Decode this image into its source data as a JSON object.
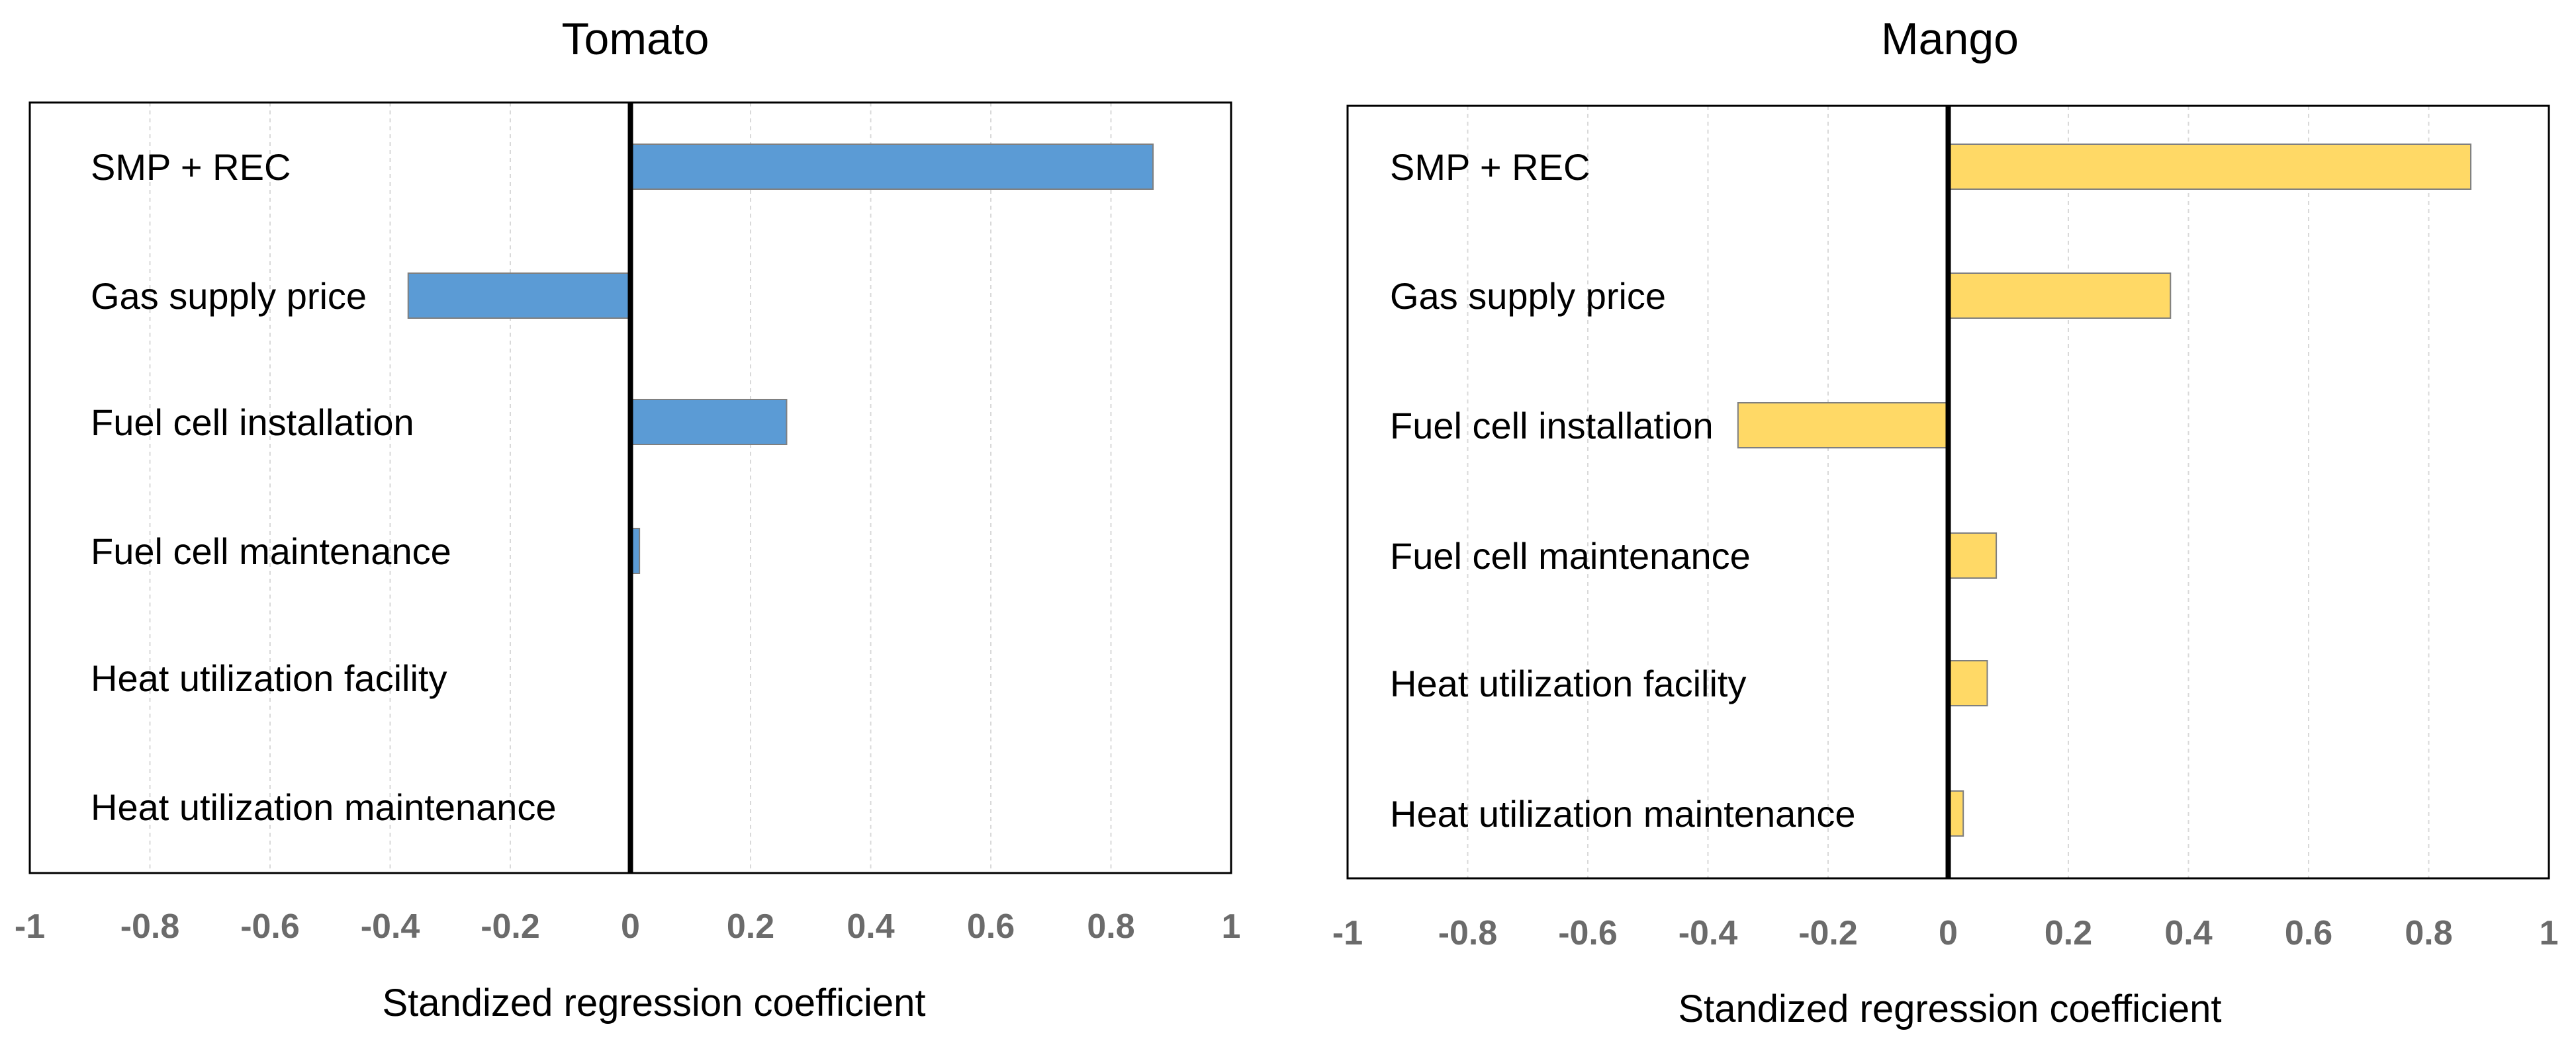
{
  "chart_data": [
    {
      "type": "bar",
      "orientation": "horizontal",
      "title": "Tomato",
      "categories": [
        "SMP + REC",
        "Gas supply price",
        "Fuel cell installation",
        "Fuel cell maintenance",
        "Heat utilization facility",
        "Heat utilization maintenance"
      ],
      "values": [
        0.87,
        -0.37,
        0.26,
        0.015,
        0,
        0
      ],
      "xlabel": "Standized regression coefficient",
      "ylabel": "",
      "xlim": [
        -1,
        1
      ],
      "x_ticks": [
        "-1",
        "-0.8",
        "-0.6",
        "-0.4",
        "-0.2",
        "0",
        "0.2",
        "0.4",
        "0.6",
        "0.8",
        "1"
      ],
      "x_tick_values": [
        -1,
        -0.8,
        -0.6,
        -0.4,
        -0.2,
        0,
        0.2,
        0.4,
        0.6,
        0.8,
        1
      ],
      "bar_color": "#5b9bd5",
      "grid": true
    },
    {
      "type": "bar",
      "orientation": "horizontal",
      "title": "Mango",
      "categories": [
        "SMP + REC",
        "Gas supply price",
        "Fuel cell installation",
        "Fuel cell maintenance",
        "Heat utilization facility",
        "Heat utilization maintenance"
      ],
      "values": [
        0.87,
        0.37,
        -0.35,
        0.08,
        0.065,
        0.025
      ],
      "xlabel": "Standized regression coefficient",
      "ylabel": "",
      "xlim": [
        -1,
        1
      ],
      "x_ticks": [
        "-1",
        "-0.8",
        "-0.6",
        "-0.4",
        "-0.2",
        "0",
        "0.2",
        "0.4",
        "0.6",
        "0.8",
        "1"
      ],
      "x_tick_values": [
        -1,
        -0.8,
        -0.6,
        -0.4,
        -0.2,
        0,
        0.2,
        0.4,
        0.6,
        0.8,
        1
      ],
      "bar_color": "#ffd966",
      "grid": true
    }
  ]
}
